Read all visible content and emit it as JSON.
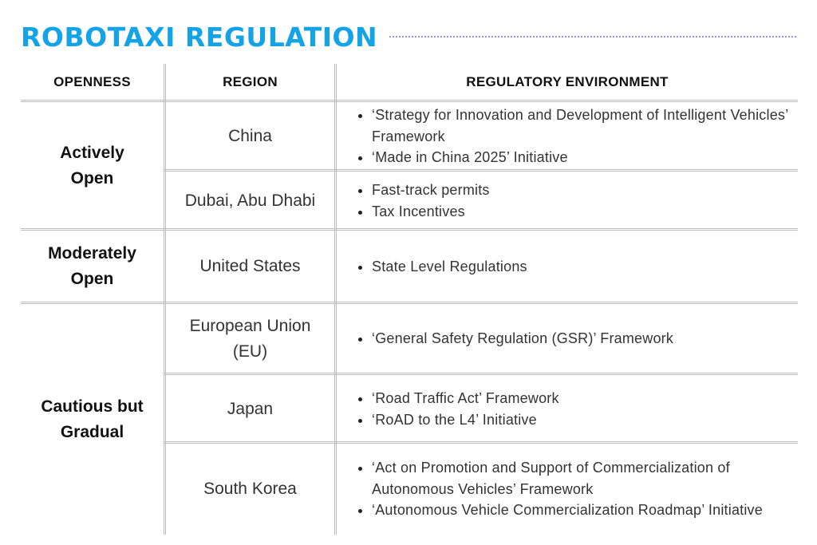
{
  "title": "ROBOTAXI REGULATION",
  "headers": {
    "openness": "OPENNESS",
    "region": "REGION",
    "environment": "REGULATORY ENVIRONMENT"
  },
  "openness_groups": [
    {
      "label": "Actively\nOpen"
    },
    {
      "label": "Moderately\nOpen"
    },
    {
      "label": "Cautious but\nGradual"
    }
  ],
  "rows": [
    {
      "region": "China",
      "items": [
        "‘Strategy for Innovation and Development of Intelligent Vehicles’ Framework",
        "‘Made in China 2025’ Initiative"
      ]
    },
    {
      "region": "Dubai, Abu Dhabi",
      "items": [
        "Fast-track permits",
        "Tax Incentives"
      ]
    },
    {
      "region": "United States",
      "items": [
        "State Level Regulations"
      ]
    },
    {
      "region": "European Union\n(EU)",
      "items": [
        "‘General Safety Regulation (GSR)’ Framework"
      ]
    },
    {
      "region": "Japan",
      "items": [
        "‘Road Traffic Act’ Framework",
        "‘RoAD to the L4’ Initiative"
      ]
    },
    {
      "region": "South Korea",
      "items": [
        "‘Act on Promotion and Support of Commercialization of Autonomous Vehicles’ Framework",
        "‘Autonomous Vehicle Commercialization Roadmap’ Initiative"
      ]
    }
  ]
}
